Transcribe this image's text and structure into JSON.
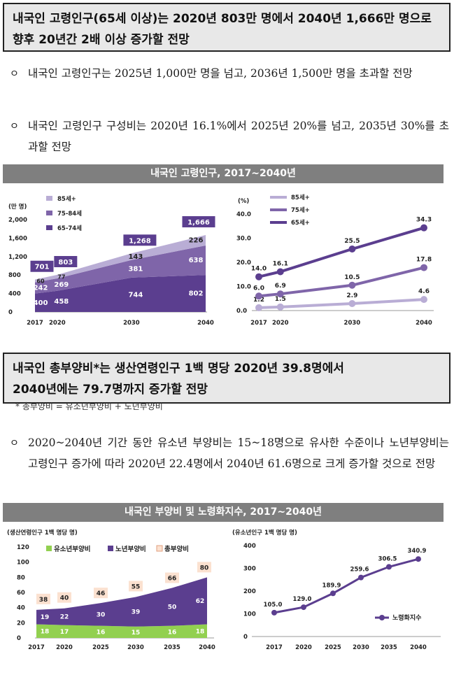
{
  "section1": {
    "headline_line1": "내국인 고령인구(65세 이상)는 2020년 803만 명에서 2040년 1,666만 명으로",
    "headline_line2": "향후 20년간 2배 이상 증가할 전망",
    "bullet_mark": "ㅇ",
    "bullets": [
      "내국인 고령인구는 2025년 1,000만 명을 넘고, 2036년 1,500만 명을 초과할 전망",
      "내국인 고령인구 구성비는 2020년 16.1%에서 2025년 20%를 넘고, 2035년 30%를 초과할 전망"
    ],
    "band_title": "내국인 고령인구, 2017~2040년"
  },
  "section2": {
    "headline_line1": "내국인 총부양비*는 생산연령인구 1백 명당 2020년 39.8명에서",
    "headline_line2": "2040년에는 79.7명까지 증가할 전망",
    "footnote": "* 총부양비 = 유소년부양비 + 노년부양비",
    "bullet_mark": "ㅇ",
    "bullet": "2020~2040년 기간 동안 유소년 부양비는 15~18명으로 유사한 수준이나 노년부양비는 고령인구 증가에 따라 2020년 22.4명에서 2040년 61.6명으로 크게 증가할 것으로 전망",
    "band_title": "내국인 부양비 및 노령화지수, 2017~2040년"
  },
  "colors": {
    "band": "#7f7f7f",
    "dark_purple": "#5b3e8f",
    "mid_purple": "#7f65a9",
    "light_purple": "#b9add5",
    "green": "#92d050",
    "peach": "#fbe1d0"
  },
  "chart_data": [
    {
      "type": "area",
      "title": "내국인 고령인구, 2017~2040년",
      "ylabel": "(만 명)",
      "ylim": [
        0,
        2000
      ],
      "yticks": [
        "0",
        "400",
        "800",
        "1,200",
        "1,600",
        "2,000"
      ],
      "x": [
        2017,
        2020,
        2030,
        2040
      ],
      "x_labels": [
        "2017",
        "2020",
        "2030",
        "2040"
      ],
      "series": [
        {
          "name": "65-74세",
          "values": [
            400,
            458,
            744,
            802
          ],
          "labels": [
            "400",
            "458",
            "744",
            "802"
          ]
        },
        {
          "name": "75-84세",
          "values": [
            242,
            269,
            381,
            638
          ],
          "labels": [
            "242",
            "269",
            "381",
            "638"
          ]
        },
        {
          "name": "85세+",
          "values": [
            60,
            77,
            143,
            226
          ],
          "labels": [
            "60",
            "77",
            "143",
            "226"
          ]
        }
      ],
      "totals": [
        701,
        803,
        1268,
        1666
      ],
      "total_labels": [
        "701",
        "803",
        "1,268",
        "1,666"
      ],
      "legend": [
        "85세+",
        "75-84세",
        "65-74세"
      ]
    },
    {
      "type": "line",
      "ylabel": "(%)",
      "ylim": [
        0,
        40
      ],
      "yticks": [
        "0.0",
        "10.0",
        "20.0",
        "30.0",
        "40.0"
      ],
      "x": [
        2017,
        2020,
        2030,
        2040
      ],
      "x_labels": [
        "2017",
        "2020",
        "2030",
        "2040"
      ],
      "series": [
        {
          "name": "85세+",
          "values": [
            1.2,
            1.5,
            2.9,
            4.6
          ],
          "labels": [
            "1.2",
            "1.5",
            "2.9",
            "4.6"
          ]
        },
        {
          "name": "75세+",
          "values": [
            6.0,
            6.9,
            10.5,
            17.8
          ],
          "labels": [
            "6.0",
            "6.9",
            "10.5",
            "17.8"
          ]
        },
        {
          "name": "65세+",
          "values": [
            14.0,
            16.1,
            25.5,
            34.3
          ],
          "labels": [
            "14.0",
            "16.1",
            "25.5",
            "34.3"
          ]
        }
      ],
      "legend": [
        "85세+",
        "75세+",
        "65세+"
      ]
    },
    {
      "type": "area",
      "title": "내국인 부양비 및 노령화지수, 2017~2040년",
      "ylabel": "(생산연령인구 1백 명당 명)",
      "ylim": [
        0,
        120
      ],
      "yticks": [
        "0",
        "20",
        "40",
        "60",
        "80",
        "100",
        "120"
      ],
      "x": [
        2017,
        2020,
        2025,
        2030,
        2035,
        2040
      ],
      "x_labels": [
        "2017",
        "2020",
        "2025",
        "2030",
        "2035",
        "2040"
      ],
      "series": [
        {
          "name": "유소년부양비",
          "values": [
            18,
            17,
            16,
            15,
            16,
            18
          ],
          "labels": [
            "18",
            "17",
            "16",
            "15",
            "16",
            "18"
          ]
        },
        {
          "name": "노년부양비",
          "values": [
            19,
            22,
            30,
            39,
            50,
            62
          ],
          "labels": [
            "19",
            "22",
            "30",
            "39",
            "50",
            "62"
          ]
        }
      ],
      "totals": [
        38,
        40,
        46,
        55,
        66,
        80
      ],
      "total_labels": [
        "38",
        "40",
        "46",
        "55",
        "66",
        "80"
      ],
      "legend": [
        "유소년부양비",
        "노년부양비",
        "총부양비"
      ]
    },
    {
      "type": "line",
      "ylabel": "(유소년인구 1백 명당 명)",
      "ylim": [
        0,
        400
      ],
      "yticks": [
        "0",
        "100",
        "200",
        "300",
        "400"
      ],
      "x": [
        2017,
        2020,
        2025,
        2030,
        2035,
        2040
      ],
      "x_labels": [
        "2017",
        "2020",
        "2025",
        "2030",
        "2035",
        "2040"
      ],
      "series": [
        {
          "name": "노령화지수",
          "values": [
            105.0,
            129.0,
            189.9,
            259.6,
            306.5,
            340.9
          ],
          "labels": [
            "105.0",
            "129.0",
            "189.9",
            "259.6",
            "306.5",
            "340.9"
          ]
        }
      ],
      "legend": [
        "노령화지수"
      ]
    }
  ]
}
